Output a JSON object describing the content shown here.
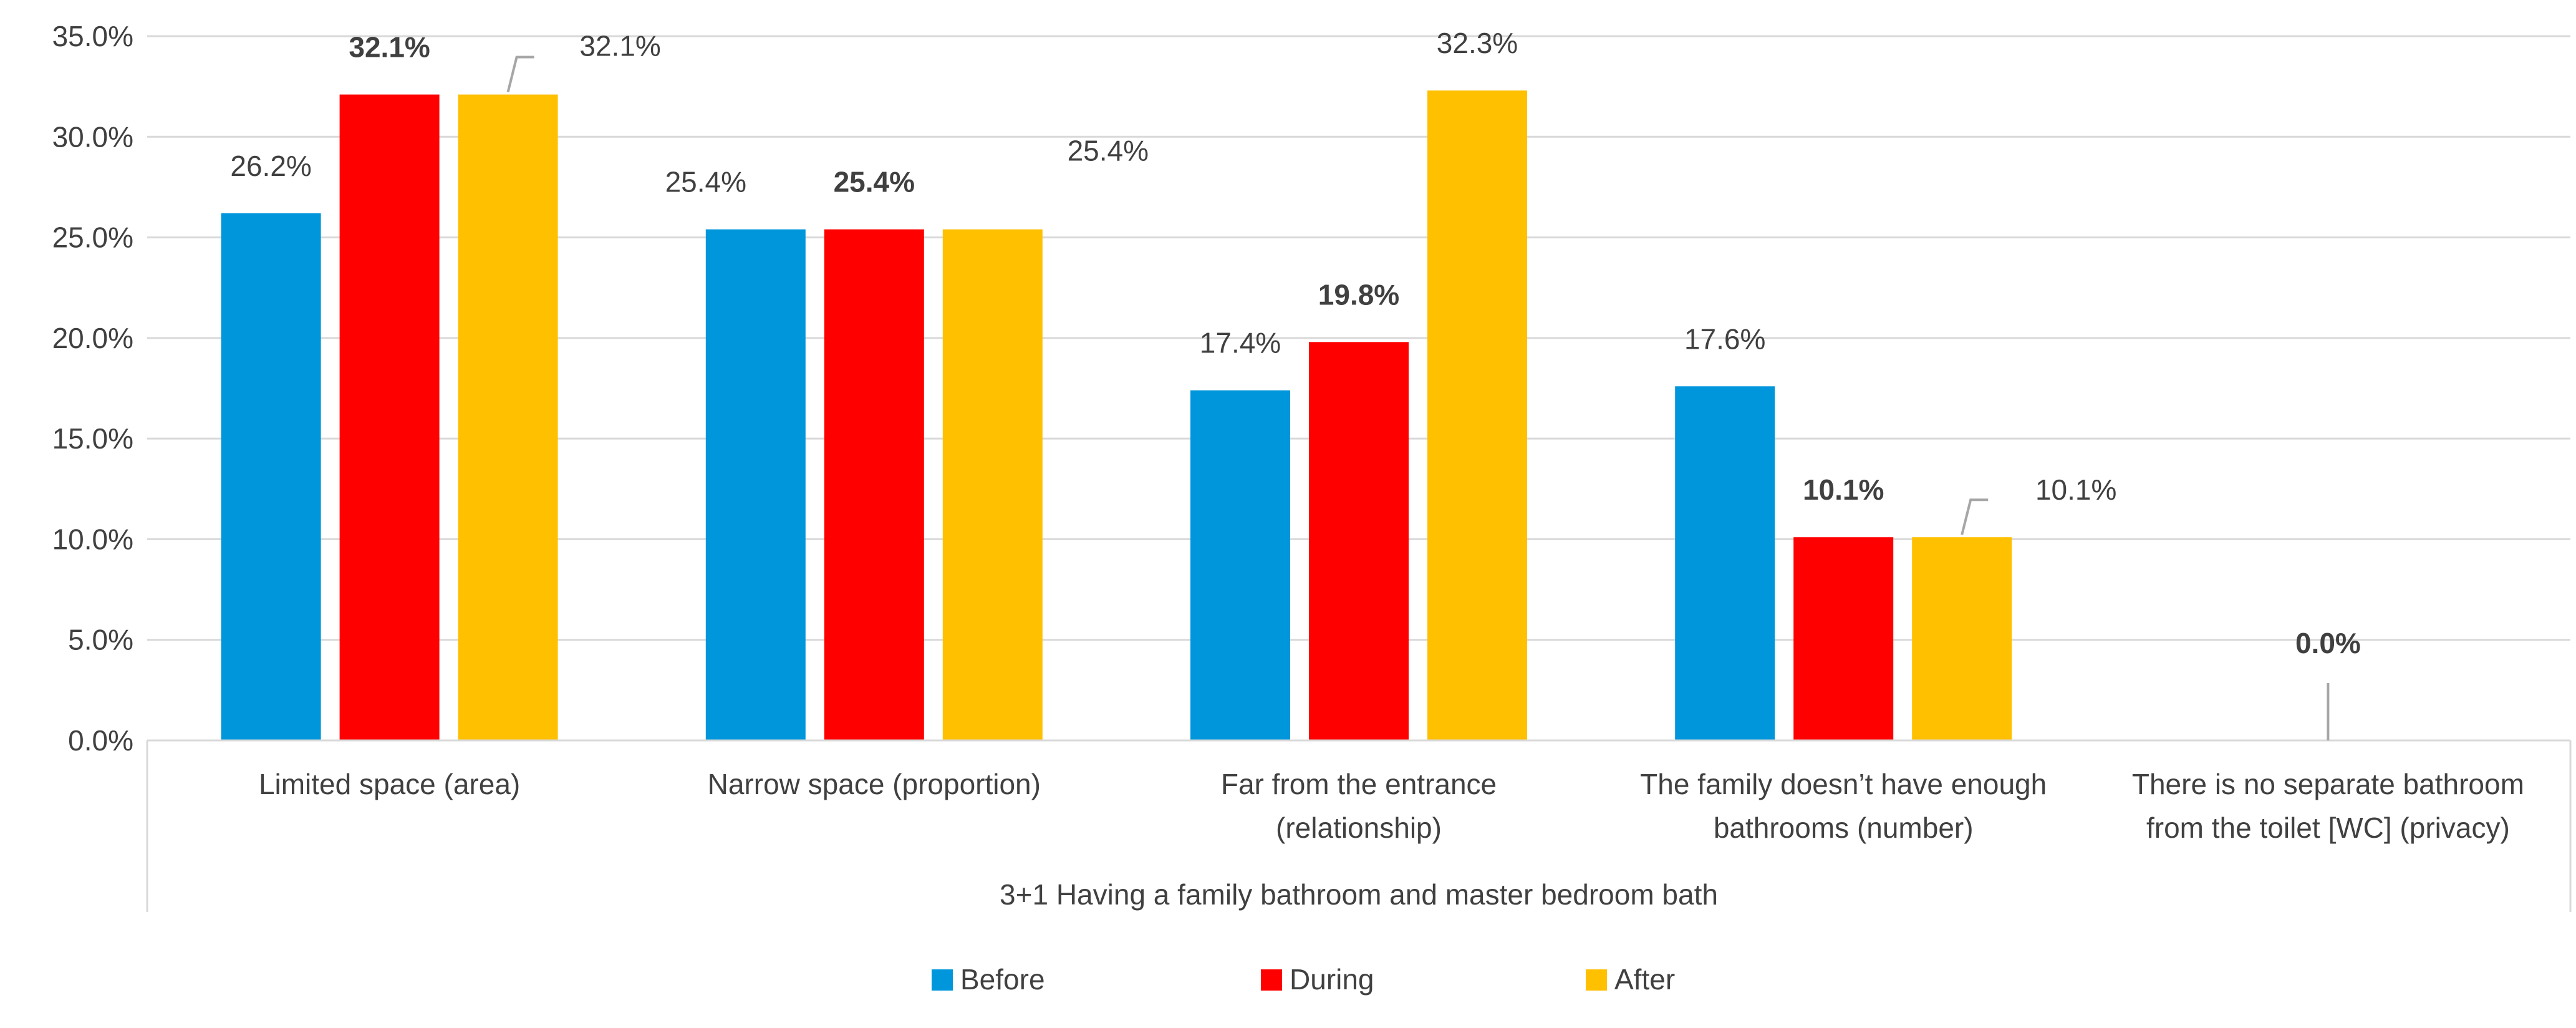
{
  "chart_data": {
    "type": "bar",
    "categories": [
      [
        "Limited space (area)"
      ],
      [
        "Narrow space (proportion)"
      ],
      [
        "Far from the entrance",
        "(relationship)"
      ],
      [
        "The family doesn’t have enough",
        "bathrooms (number)"
      ],
      [
        "There is no separate bathroom",
        "from the toilet [WC] (privacy)"
      ]
    ],
    "group_label": "3+1 Having a family bathroom and master bedroom bath",
    "series": [
      {
        "name": "Before",
        "color": "#0096DC",
        "values": [
          26.2,
          25.4,
          17.4,
          17.6,
          0.0
        ],
        "labels": [
          "26.2%",
          "25.4%",
          "17.4%",
          "17.6%",
          ""
        ]
      },
      {
        "name": "During",
        "color": "#FF0000",
        "values": [
          32.1,
          25.4,
          19.8,
          10.1,
          0.0
        ],
        "labels": [
          "32.1%",
          "25.4%",
          "19.8%",
          "10.1%",
          "0.0%"
        ]
      },
      {
        "name": "After",
        "color": "#FFC000",
        "values": [
          32.1,
          25.4,
          32.3,
          10.1,
          0.0
        ],
        "labels": [
          "32.1%",
          "25.4%",
          "32.3%",
          "10.1%",
          ""
        ]
      }
    ],
    "ylim": [
      0,
      35
    ],
    "yticks": [
      "0.0%",
      "5.0%",
      "10.0%",
      "15.0%",
      "20.0%",
      "25.0%",
      "30.0%",
      "35.0%"
    ],
    "grid": true,
    "legend_position": "bottom",
    "title": "",
    "xlabel": "",
    "ylabel": ""
  }
}
